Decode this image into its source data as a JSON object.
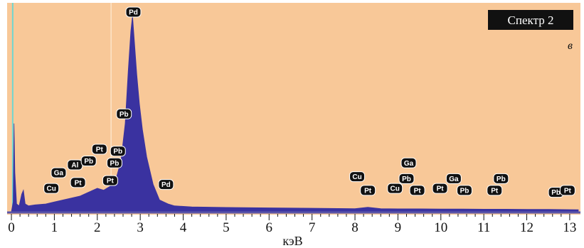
{
  "colors": {
    "background": "#f8c898",
    "spectrum": "#3a32a0",
    "label_box": "#111111",
    "title_box": "#111111"
  },
  "chart_data": {
    "type": "area",
    "title": "Спектр 2",
    "panel_letter": "в",
    "xlabel": "кэВ",
    "ylabel": "",
    "xlim": [
      -0.1,
      13.25
    ],
    "ylim": [
      0,
      100
    ],
    "grid": false,
    "xticks": [
      0,
      1,
      2,
      3,
      4,
      5,
      6,
      7,
      8,
      9,
      10,
      11,
      12,
      13
    ],
    "spectrum": {
      "x": [
        -0.05,
        0.0,
        0.04,
        0.06,
        0.08,
        0.12,
        0.18,
        0.24,
        0.28,
        0.32,
        0.4,
        0.55,
        0.8,
        1.0,
        1.2,
        1.4,
        1.6,
        1.8,
        2.0,
        2.15,
        2.3,
        2.45,
        2.55,
        2.65,
        2.72,
        2.78,
        2.82,
        2.86,
        2.92,
        2.98,
        3.05,
        3.15,
        3.3,
        3.45,
        3.55,
        3.65,
        3.8,
        4.2,
        5.0,
        6.0,
        7.0,
        8.0,
        8.3,
        8.6,
        9.0,
        9.5,
        10.0,
        10.5,
        11.0,
        11.5,
        12.0,
        12.5,
        13.0,
        13.2
      ],
      "y": [
        0,
        0,
        5,
        45,
        20,
        4,
        3,
        9,
        11,
        4,
        3,
        3.5,
        4,
        5,
        6,
        7,
        8,
        10,
        12,
        11,
        13,
        18,
        26,
        45,
        72,
        92,
        100,
        88,
        70,
        55,
        42,
        28,
        14,
        6,
        5,
        4,
        3,
        2.5,
        2.2,
        2.0,
        1.8,
        1.6,
        2.3,
        1.6,
        1.5,
        1.5,
        1.4,
        1.4,
        1.3,
        1.3,
        1.2,
        1.2,
        1.1,
        1.0
      ]
    },
    "annotations": [
      {
        "text": "Pd",
        "x": 2.84,
        "y": 100
      },
      {
        "text": "Pb",
        "x": 2.62,
        "y": 47
      },
      {
        "text": "Pt",
        "x": 2.05,
        "y": 29
      },
      {
        "text": "Pb",
        "x": 2.48,
        "y": 28
      },
      {
        "text": "Al",
        "x": 1.48,
        "y": 21
      },
      {
        "text": "Pb",
        "x": 1.8,
        "y": 23
      },
      {
        "text": "Pb",
        "x": 2.4,
        "y": 22
      },
      {
        "text": "Ga",
        "x": 1.1,
        "y": 17
      },
      {
        "text": "Pt",
        "x": 1.55,
        "y": 12
      },
      {
        "text": "Pt",
        "x": 2.3,
        "y": 13
      },
      {
        "text": "Cu",
        "x": 0.93,
        "y": 9
      },
      {
        "text": "Pd",
        "x": 3.6,
        "y": 11
      },
      {
        "text": "Cu",
        "x": 8.05,
        "y": 15
      },
      {
        "text": "Pt",
        "x": 8.3,
        "y": 8
      },
      {
        "text": "Ga",
        "x": 9.25,
        "y": 22
      },
      {
        "text": "Pb",
        "x": 9.2,
        "y": 14
      },
      {
        "text": "Cu",
        "x": 8.93,
        "y": 9
      },
      {
        "text": "Pt",
        "x": 9.45,
        "y": 8
      },
      {
        "text": "Pt",
        "x": 9.98,
        "y": 9
      },
      {
        "text": "Ga",
        "x": 10.3,
        "y": 14
      },
      {
        "text": "Pb",
        "x": 10.55,
        "y": 8
      },
      {
        "text": "Pb",
        "x": 11.4,
        "y": 14
      },
      {
        "text": "Pt",
        "x": 11.25,
        "y": 8
      },
      {
        "text": "Pb",
        "x": 12.68,
        "y": 7
      },
      {
        "text": "Pt",
        "x": 12.95,
        "y": 8
      }
    ]
  }
}
